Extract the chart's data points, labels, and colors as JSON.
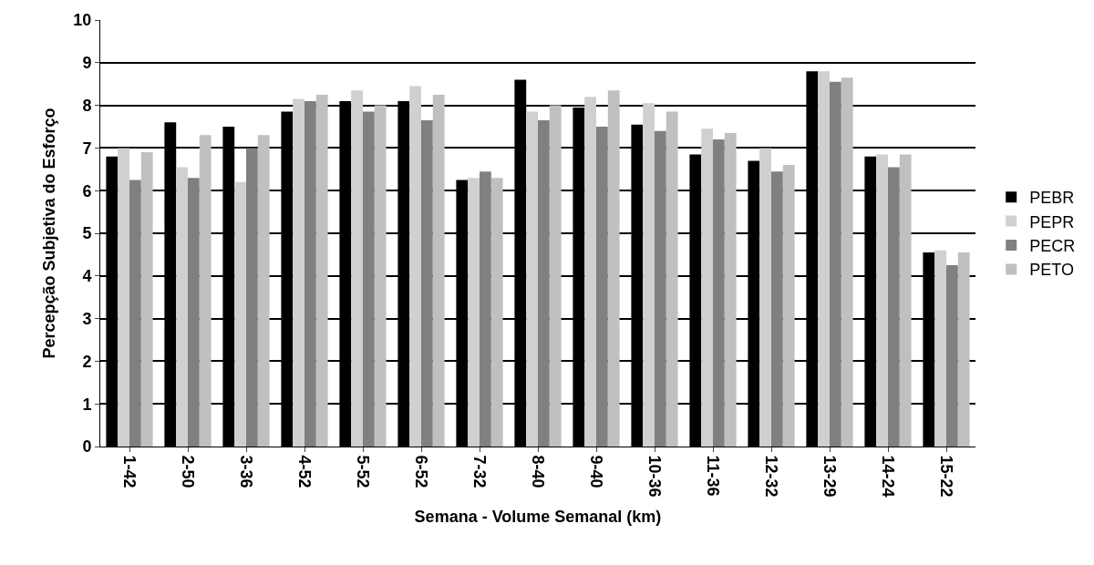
{
  "chart_data": {
    "type": "bar",
    "xlabel": "Semana - Volume Semanal (km)",
    "ylabel": "Percepção Subjetiva do Esforço",
    "categories": [
      "1-42",
      "2-50",
      "3-36",
      "4-52",
      "5-52",
      "6-52",
      "7-32",
      "8-40",
      "9-40",
      "10-36",
      "11-36",
      "12-32",
      "13-29",
      "14-24",
      "15-22"
    ],
    "series": [
      {
        "name": "PEBR",
        "color": "#000000",
        "values": [
          6.8,
          7.6,
          7.5,
          7.85,
          8.1,
          8.1,
          6.25,
          8.6,
          7.95,
          7.55,
          6.85,
          6.7,
          8.8,
          6.8,
          4.55
        ]
      },
      {
        "name": "PEPR",
        "color": "#d0d0d0",
        "values": [
          7.0,
          6.55,
          6.2,
          8.15,
          8.35,
          8.45,
          6.3,
          7.85,
          8.2,
          8.05,
          7.45,
          7.0,
          8.8,
          6.85,
          4.6
        ]
      },
      {
        "name": "PECR",
        "color": "#808080",
        "values": [
          6.25,
          6.3,
          7.0,
          8.1,
          7.85,
          7.65,
          6.45,
          7.65,
          7.5,
          7.4,
          7.2,
          6.45,
          8.55,
          6.55,
          4.25
        ]
      },
      {
        "name": "PETO",
        "color": "#c0c0c0",
        "values": [
          6.9,
          7.3,
          7.3,
          8.25,
          8.0,
          8.25,
          6.3,
          8.0,
          8.35,
          7.85,
          7.35,
          6.6,
          8.65,
          6.85,
          4.55
        ]
      }
    ],
    "ylim": [
      0,
      10
    ],
    "yticks": [
      0,
      1,
      2,
      3,
      4,
      5,
      6,
      7,
      8,
      9,
      10
    ],
    "grid": "y",
    "legend": "right"
  }
}
